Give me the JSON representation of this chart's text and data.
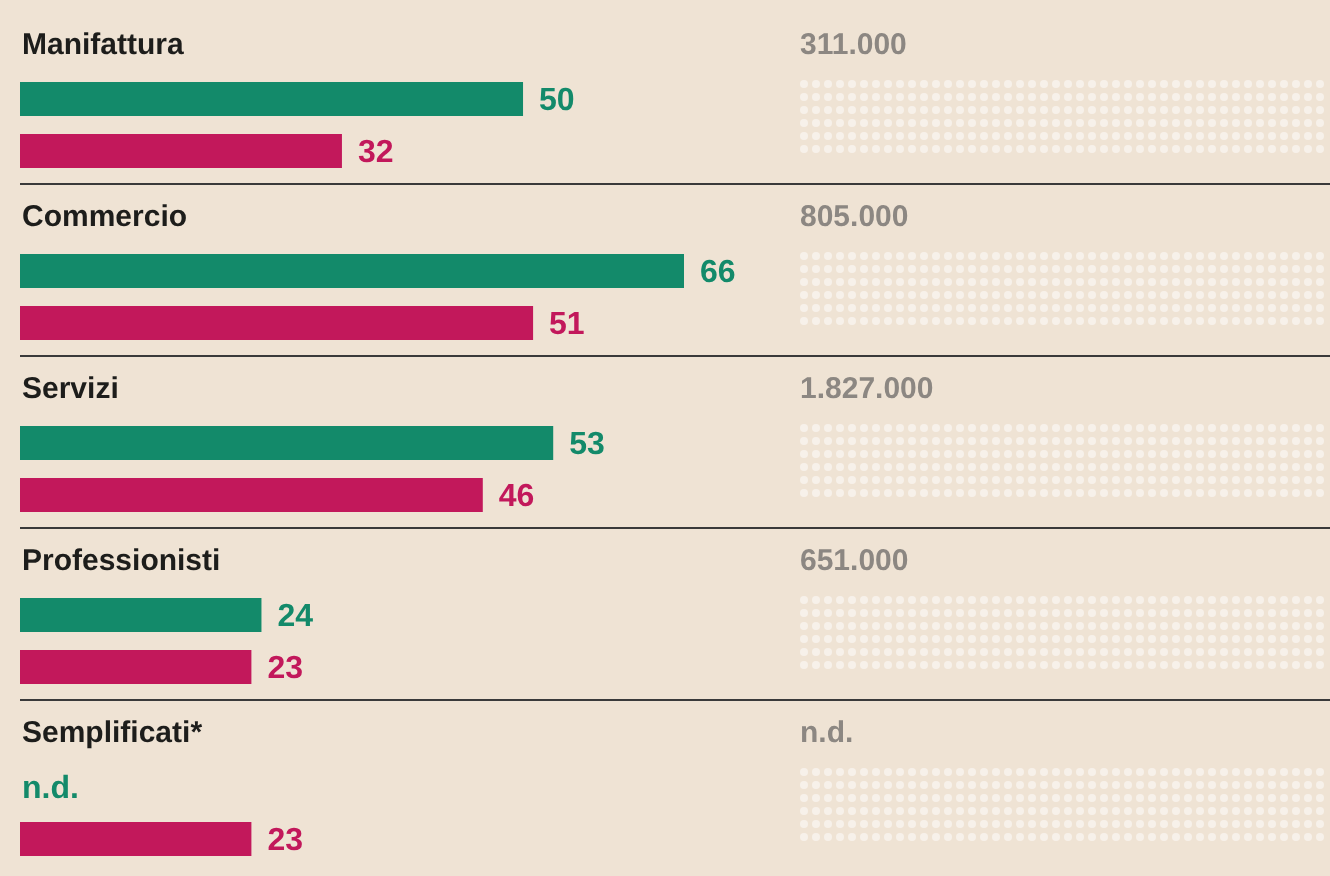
{
  "chart_data": {
    "type": "bar",
    "orientation": "horizontal",
    "categories": [
      "Manifattura",
      "Commercio",
      "Servizi",
      "Professionisti",
      "Semplificati*"
    ],
    "series": [
      {
        "color": "#138a6a",
        "values": [
          50,
          66,
          53,
          24,
          null
        ],
        "value_labels": [
          "50",
          "66",
          "53",
          "24",
          "n.d."
        ]
      },
      {
        "color": "#c2185b",
        "values": [
          32,
          51,
          46,
          23,
          23
        ],
        "value_labels": [
          "32",
          "51",
          "46",
          "23",
          "23"
        ]
      }
    ],
    "annotations": [
      "311.000",
      "805.000",
      "1.827.000",
      "651.000",
      "n.d."
    ]
  }
}
